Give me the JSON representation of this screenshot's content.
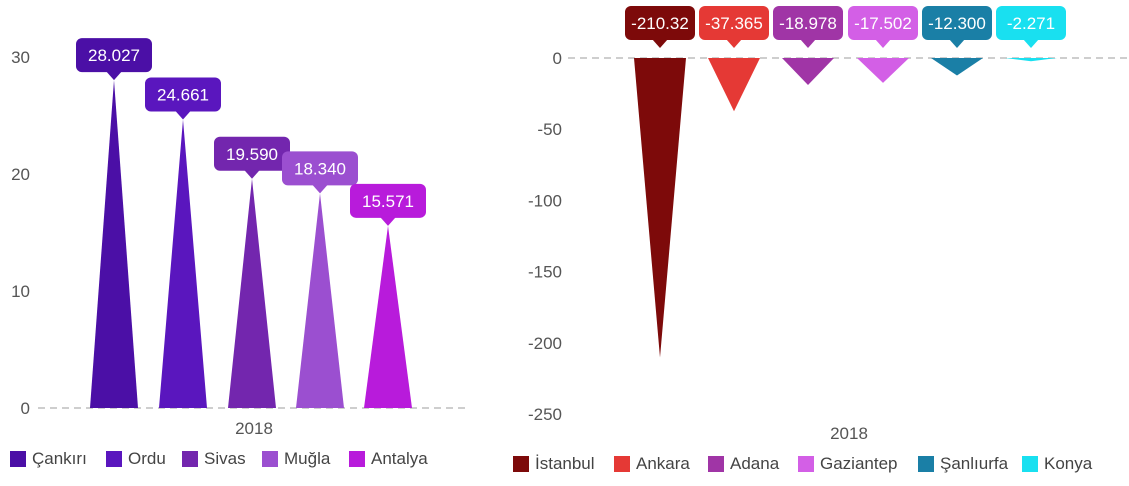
{
  "chart_data": [
    {
      "type": "bar",
      "categories": [
        "2018"
      ],
      "series": [
        {
          "name": "Çankırı",
          "values": [
            28.027
          ],
          "label": "28.027",
          "color": "#4B0FA6"
        },
        {
          "name": "Ordu",
          "values": [
            24.661
          ],
          "label": "24.661",
          "color": "#5A16BE"
        },
        {
          "name": "Sivas",
          "values": [
            19.59
          ],
          "label": "19.590",
          "color": "#7326AE"
        },
        {
          "name": "Muğla",
          "values": [
            18.34
          ],
          "label": "18.340",
          "color": "#9B4FD0"
        },
        {
          "name": "Antalya",
          "values": [
            15.571
          ],
          "label": "15.571",
          "color": "#B81BDB"
        }
      ],
      "yticks": [
        "0",
        "10",
        "20",
        "30"
      ],
      "ylim": [
        0,
        30
      ],
      "grid": false,
      "legend_position": "bottom-left"
    },
    {
      "type": "bar",
      "categories": [
        "2018"
      ],
      "series": [
        {
          "name": "İstanbul",
          "values": [
            -210.32
          ],
          "label": "-210.32",
          "color": "#7D0A0A"
        },
        {
          "name": "Ankara",
          "values": [
            -37.365
          ],
          "label": "-37.365",
          "color": "#E53935"
        },
        {
          "name": "Adana",
          "values": [
            -18.978
          ],
          "label": "-18.978",
          "color": "#A035A6"
        },
        {
          "name": "Gaziantep",
          "values": [
            -17.502
          ],
          "label": "-17.502",
          "color": "#D35FE6"
        },
        {
          "name": "Şanlıurfa",
          "values": [
            -12.3
          ],
          "label": "-12.300",
          "color": "#1A7FA6"
        },
        {
          "name": "Konya",
          "values": [
            -2.271
          ],
          "label": "-2.271",
          "color": "#19E0F0"
        }
      ],
      "yticks": [
        "0",
        "-50",
        "-100",
        "-150",
        "-200",
        "-250"
      ],
      "ylim": [
        -250,
        0
      ],
      "grid": false,
      "legend_position": "bottom"
    }
  ]
}
